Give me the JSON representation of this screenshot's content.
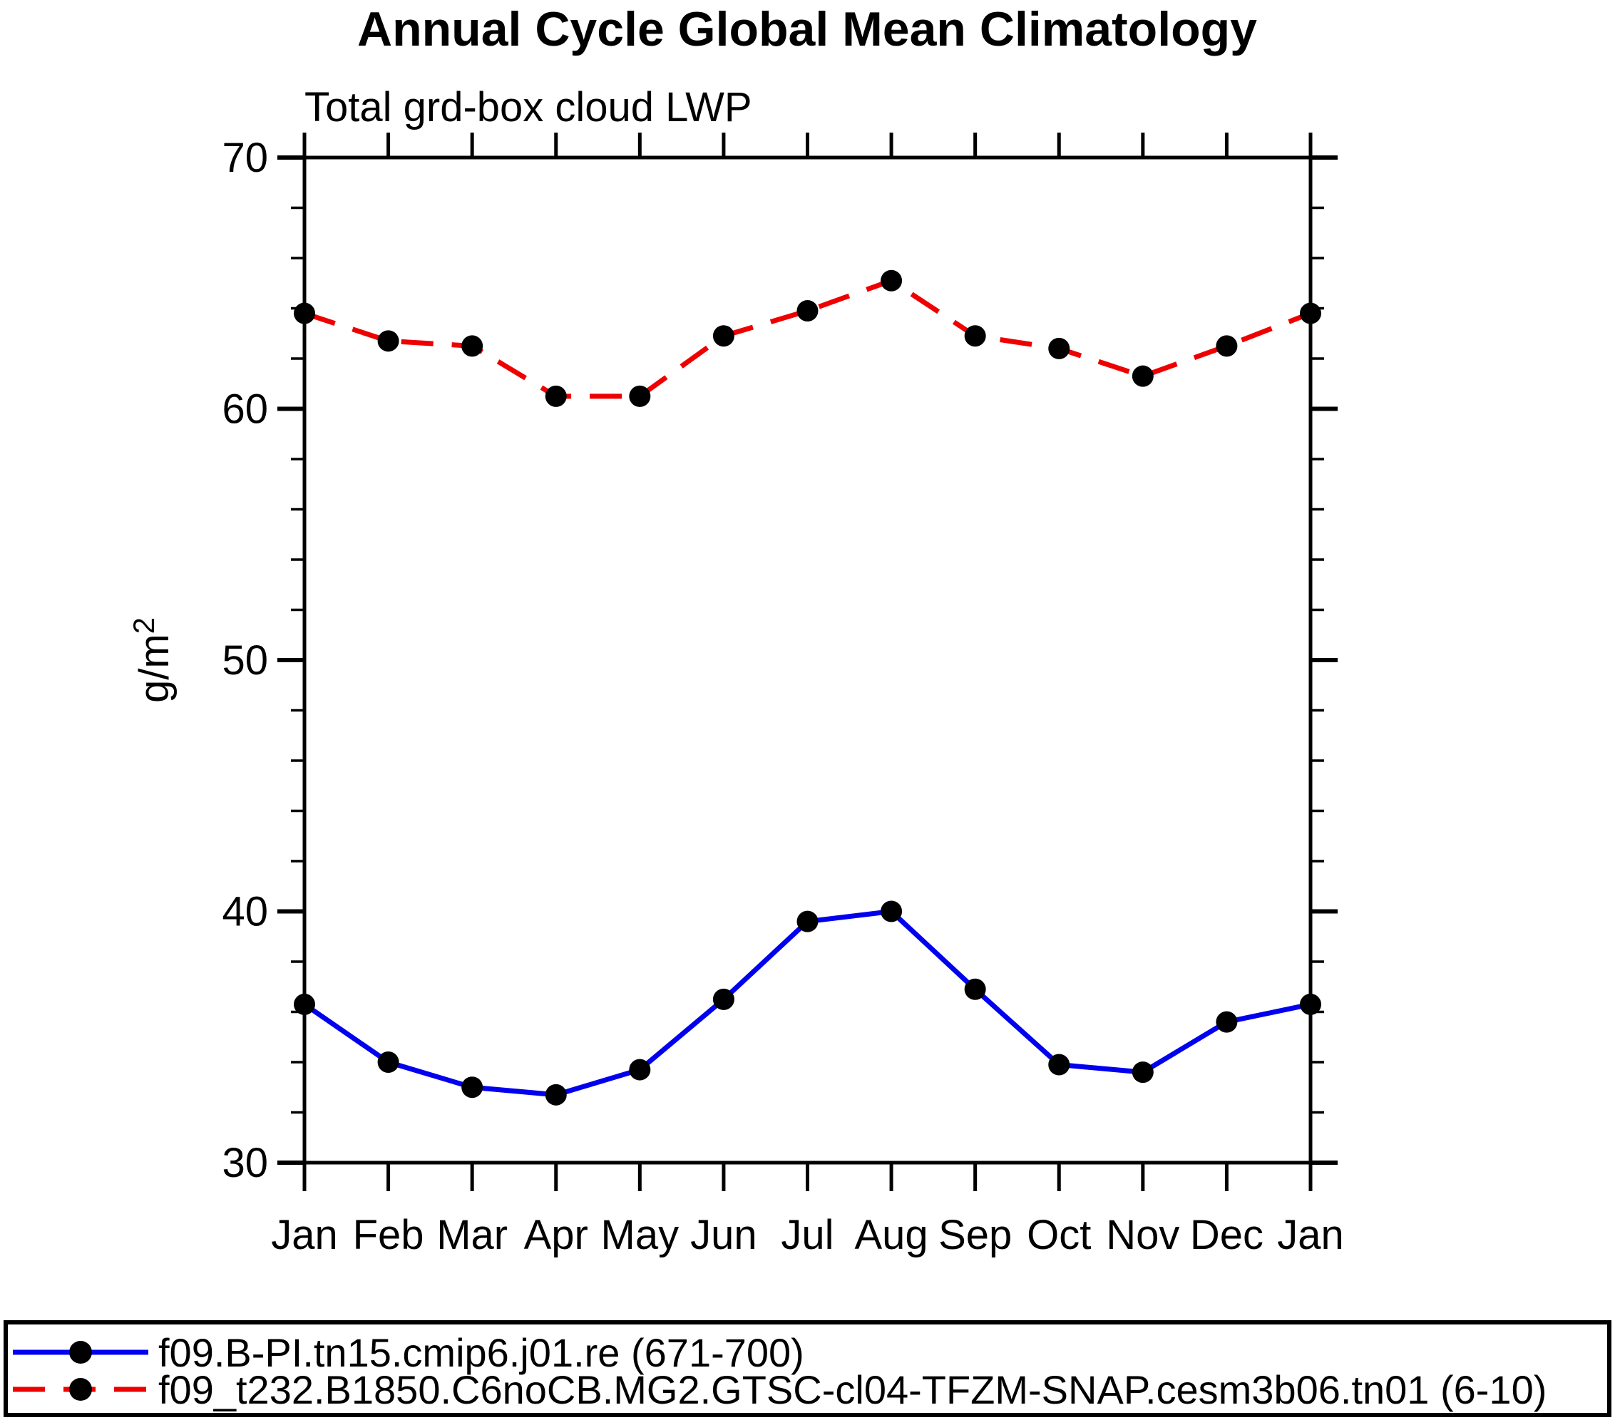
{
  "chart_data": {
    "type": "line",
    "title": "Annual Cycle Global Mean Climatology",
    "subtitle": "Total grd-box cloud LWP",
    "ylabel": {
      "base": "g/m",
      "sup": "2"
    },
    "x_categories": [
      "Jan",
      "Feb",
      "Mar",
      "Apr",
      "May",
      "Jun",
      "Jul",
      "Aug",
      "Sep",
      "Oct",
      "Nov",
      "Dec",
      "Jan"
    ],
    "ylim": [
      30,
      70
    ],
    "ytick_major": [
      30,
      40,
      50,
      60,
      70
    ],
    "ytick_minor_step": 2,
    "grid": false,
    "legend_position": "bottom",
    "series": [
      {
        "name": "f09.B-PI.tn15.cmip6.j01.re (671-700)",
        "color": "#0000ee",
        "line_style": "solid",
        "marker": "circle",
        "marker_color": "#000000",
        "values": [
          36.3,
          34.0,
          33.0,
          32.7,
          33.7,
          36.5,
          39.6,
          40.0,
          36.9,
          33.9,
          33.6,
          35.6,
          36.3
        ]
      },
      {
        "name": "f09_t232.B1850.C6noCB.MG2.GTSC-cl04-TFZM-SNAP.cesm3b06.tn01 (6-10)",
        "color": "#ee0000",
        "line_style": "dashed",
        "marker": "circle",
        "marker_color": "#000000",
        "values": [
          63.8,
          62.7,
          62.5,
          60.5,
          60.5,
          62.9,
          63.9,
          65.1,
          62.9,
          62.4,
          61.3,
          62.5,
          63.8
        ]
      }
    ],
    "colors": {
      "axis": "#000000",
      "background": "#ffffff"
    }
  }
}
